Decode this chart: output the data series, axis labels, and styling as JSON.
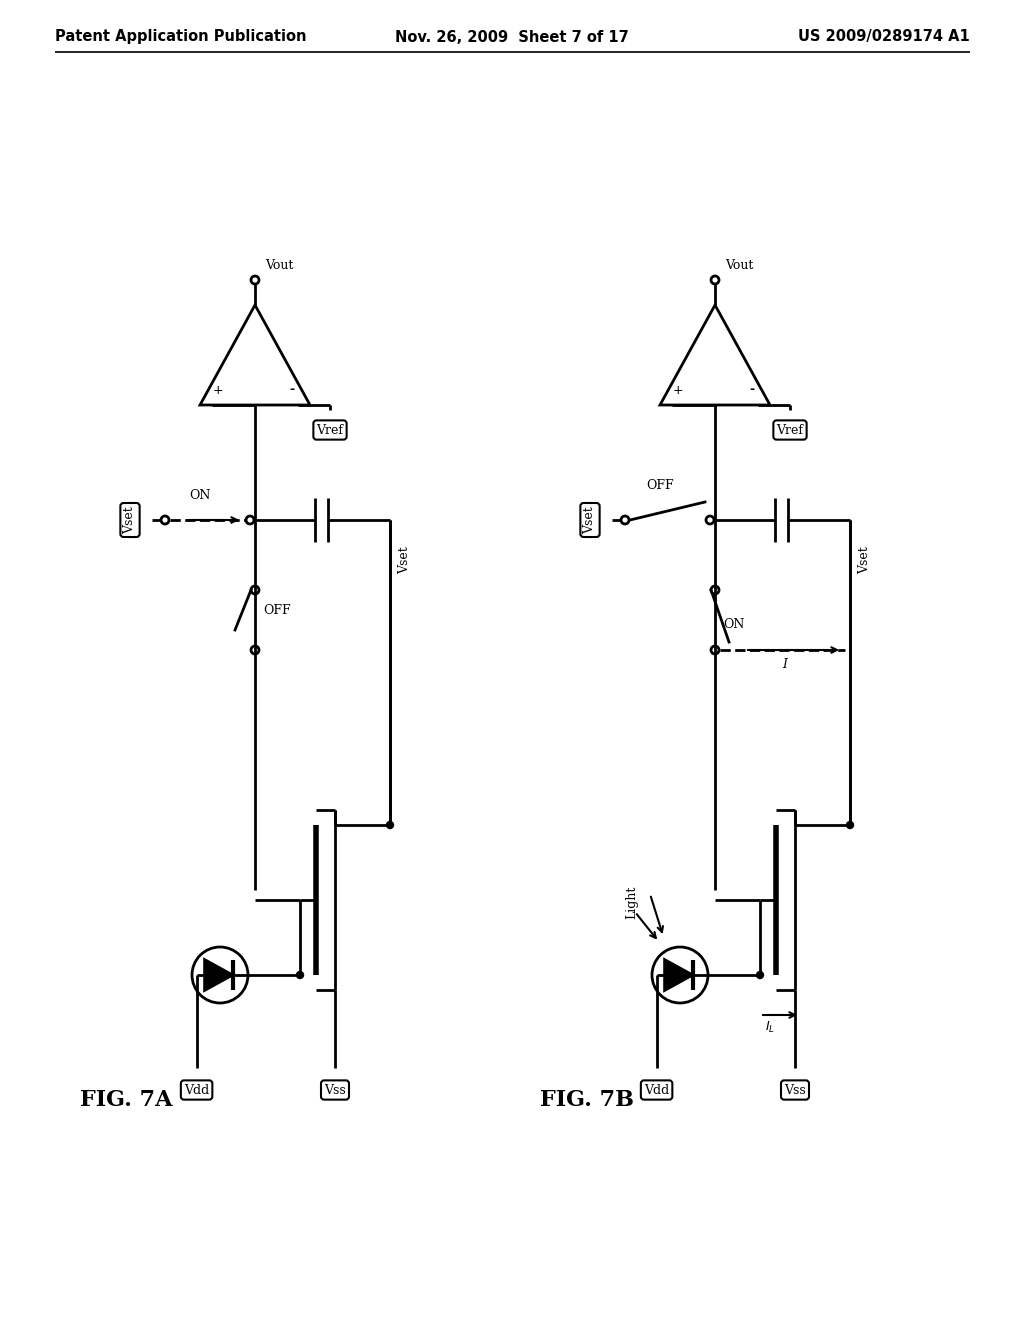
{
  "title_left": "Patent Application Publication",
  "title_center": "Nov. 26, 2009  Sheet 7 of 17",
  "title_right": "US 2009/0289174 A1",
  "fig7a_label": "FIG. 7A",
  "fig7b_label": "FIG. 7B",
  "background": "#ffffff",
  "line_color": "#000000"
}
